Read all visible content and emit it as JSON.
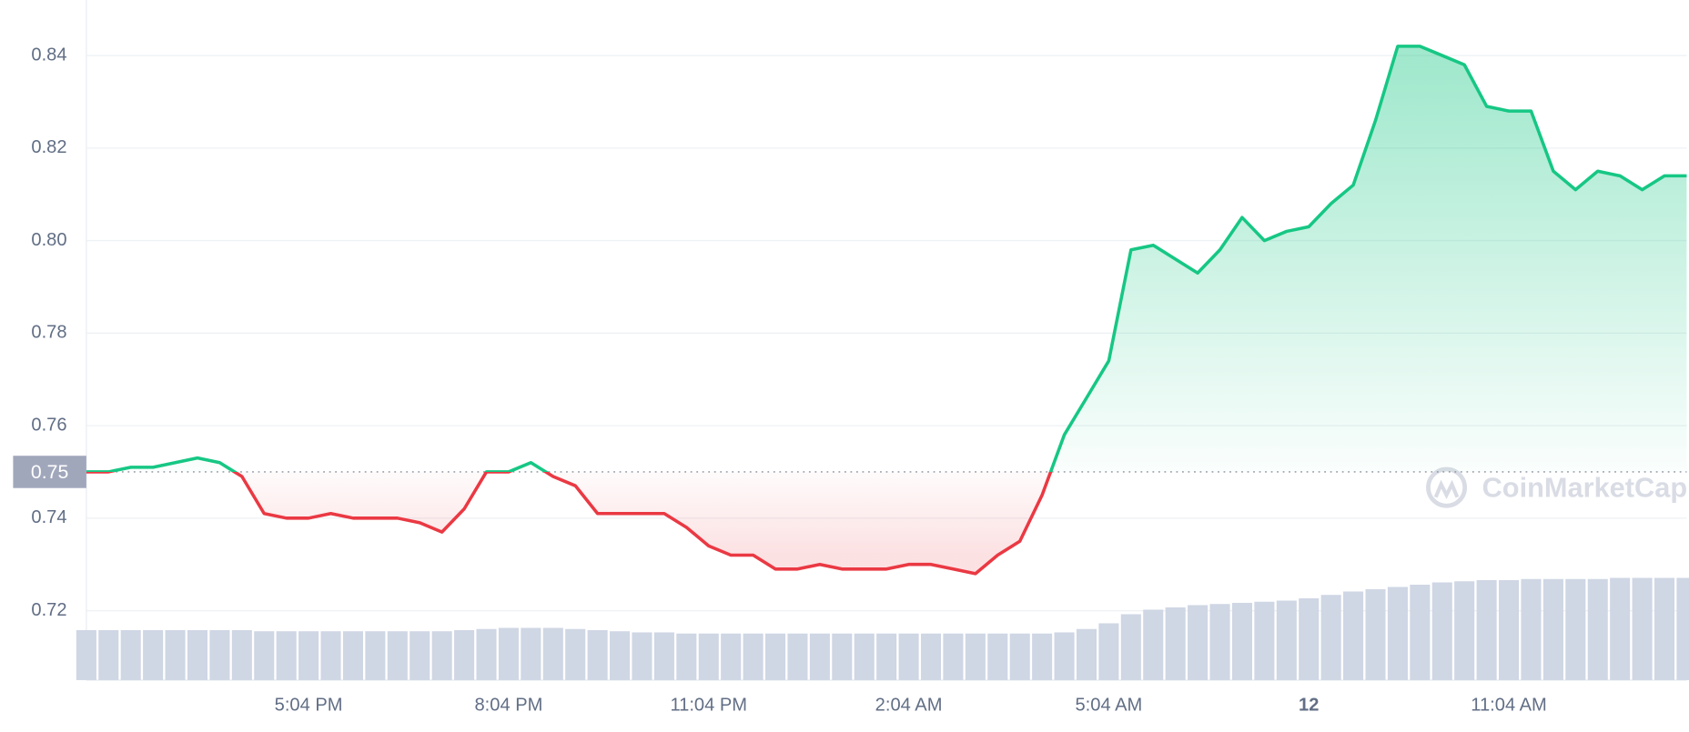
{
  "chart_data": {
    "type": "line",
    "categories": [
      null,
      null,
      null,
      null,
      null,
      null,
      null,
      null,
      null,
      null,
      "5:04 PM",
      null,
      null,
      null,
      null,
      null,
      null,
      null,
      null,
      "8:04 PM",
      null,
      null,
      null,
      null,
      null,
      null,
      null,
      null,
      "11:04 PM",
      null,
      null,
      null,
      null,
      null,
      null,
      null,
      null,
      "2:04 AM",
      null,
      null,
      null,
      null,
      null,
      null,
      null,
      null,
      "5:04 AM",
      null,
      null,
      null,
      null,
      null,
      null,
      null,
      null,
      "12",
      null,
      null,
      null,
      null,
      null,
      null,
      null,
      null,
      "11:04 AM",
      null,
      null,
      null,
      null,
      null,
      null,
      null,
      null
    ],
    "values": [
      0.75,
      0.75,
      0.751,
      0.751,
      0.752,
      0.753,
      0.752,
      0.749,
      0.741,
      0.74,
      0.74,
      0.741,
      0.74,
      0.74,
      0.74,
      0.739,
      0.737,
      0.742,
      0.75,
      0.75,
      0.752,
      0.749,
      0.747,
      0.741,
      0.741,
      0.741,
      0.741,
      0.738,
      0.734,
      0.732,
      0.732,
      0.729,
      0.729,
      0.73,
      0.729,
      0.729,
      0.729,
      0.73,
      0.73,
      0.729,
      0.728,
      0.732,
      0.735,
      0.745,
      0.758,
      0.766,
      0.774,
      0.798,
      0.799,
      0.796,
      0.793,
      0.798,
      0.805,
      0.8,
      0.802,
      0.803,
      0.808,
      0.812,
      0.826,
      0.842,
      0.842,
      0.84,
      0.838,
      0.829,
      0.828,
      0.828,
      0.815,
      0.811,
      0.815,
      0.814,
      0.811,
      0.814,
      0.814
    ],
    "volume": [
      44,
      44,
      44,
      44,
      44,
      44,
      44,
      44,
      43,
      43,
      43,
      43,
      43,
      43,
      43,
      43,
      43,
      44,
      45,
      46,
      46,
      46,
      45,
      44,
      43,
      42,
      42,
      41,
      41,
      41,
      41,
      41,
      41,
      41,
      41,
      41,
      41,
      41,
      41,
      41,
      41,
      41,
      41,
      41,
      42,
      45,
      50,
      58,
      62,
      64,
      66,
      67,
      68,
      69,
      70,
      72,
      75,
      78,
      80,
      82,
      84,
      86,
      87,
      88,
      88,
      89,
      89,
      89,
      89,
      90,
      90,
      90,
      90
    ],
    "reference": 0.75,
    "up_color": "#16c784",
    "down_color": "#ea3943",
    "volume_color": "#cfd6e4",
    "ylim": [
      0.705,
      0.852
    ],
    "yticks": [
      0.72,
      0.74,
      0.76,
      0.78,
      {
        "value": 0.8,
        "label": "0.80"
      },
      0.82,
      0.84
    ],
    "grid": true,
    "watermark": "CoinMarketCap"
  }
}
